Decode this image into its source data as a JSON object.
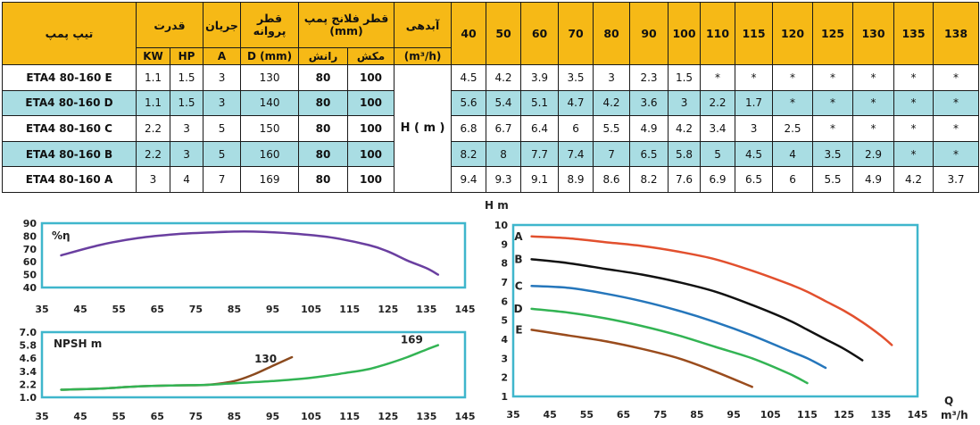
{
  "table": {
    "headers": {
      "model": "تیپ پمپ",
      "power": "قدرت",
      "current": "جریان",
      "impeller": "قطر پروانه",
      "flange": "قطر فلانج پمپ (mm)",
      "flow": "آبدهی",
      "kw": "KW",
      "hp": "HP",
      "amp": "A",
      "dmm": "D (mm)",
      "discharge": "رانش",
      "suction": "مکش",
      "flow_unit": "(m³/h)"
    },
    "flows": [
      "40",
      "50",
      "60",
      "70",
      "80",
      "90",
      "100",
      "110",
      "115",
      "120",
      "125",
      "130",
      "135",
      "138"
    ],
    "head_label": "H ( m )",
    "rows": [
      {
        "model": "ETA4 80-160 E",
        "kw": "1.1",
        "hp": "1.5",
        "a": "3",
        "d": "130",
        "discharge": "80",
        "suction": "100",
        "heads": [
          "4.5",
          "4.2",
          "3.9",
          "3.5",
          "3",
          "2.3",
          "1.5",
          "*",
          "*",
          "*",
          "*",
          "*",
          "*",
          "*"
        ]
      },
      {
        "model": "ETA4 80-160 D",
        "kw": "1.1",
        "hp": "1.5",
        "a": "3",
        "d": "140",
        "discharge": "80",
        "suction": "100",
        "heads": [
          "5.6",
          "5.4",
          "5.1",
          "4.7",
          "4.2",
          "3.6",
          "3",
          "2.2",
          "1.7",
          "*",
          "*",
          "*",
          "*",
          "*"
        ]
      },
      {
        "model": "ETA4 80-160 C",
        "kw": "2.2",
        "hp": "3",
        "a": "5",
        "d": "150",
        "discharge": "80",
        "suction": "100",
        "heads": [
          "6.8",
          "6.7",
          "6.4",
          "6",
          "5.5",
          "4.9",
          "4.2",
          "3.4",
          "3",
          "2.5",
          "*",
          "*",
          "*",
          "*"
        ]
      },
      {
        "model": "ETA4 80-160 B",
        "kw": "2.2",
        "hp": "3",
        "a": "5",
        "d": "160",
        "discharge": "80",
        "suction": "100",
        "heads": [
          "8.2",
          "8",
          "7.7",
          "7.4",
          "7",
          "6.5",
          "5.8",
          "5",
          "4.5",
          "4",
          "3.5",
          "2.9",
          "*",
          "*"
        ]
      },
      {
        "model": "ETA4 80-160 A",
        "kw": "3",
        "hp": "4",
        "a": "7",
        "d": "169",
        "discharge": "80",
        "suction": "100",
        "heads": [
          "9.4",
          "9.3",
          "9.1",
          "8.9",
          "8.6",
          "8.2",
          "7.6",
          "6.9",
          "6.5",
          "6",
          "5.5",
          "4.9",
          "4.2",
          "3.7"
        ]
      }
    ]
  },
  "chart_data": [
    {
      "type": "line",
      "ylabel": "%η",
      "xlim": [
        35,
        145
      ],
      "ylim": [
        40,
        90
      ],
      "x_ticks": [
        "35",
        "45",
        "55",
        "65",
        "75",
        "85",
        "95",
        "105",
        "115",
        "125",
        "135",
        "145"
      ],
      "y_ticks": [
        "90",
        "80",
        "70",
        "60",
        "50",
        "40"
      ],
      "series": [
        {
          "color": "#6a3fa0",
          "x": [
            40,
            50,
            60,
            70,
            80,
            85,
            90,
            100,
            110,
            120,
            125,
            130,
            135,
            138
          ],
          "y": [
            65,
            73,
            78.5,
            81.5,
            83,
            83.5,
            83.5,
            82,
            79,
            73,
            68,
            61,
            55,
            50
          ]
        }
      ]
    },
    {
      "type": "line",
      "ylabel": "NPSH m",
      "xlim": [
        35,
        145
      ],
      "ylim": [
        1.0,
        7.0
      ],
      "x_ticks": [
        "35",
        "45",
        "55",
        "65",
        "75",
        "85",
        "95",
        "105",
        "115",
        "125",
        "135",
        "145"
      ],
      "y_ticks": [
        "7.0",
        "5.8",
        "4.6",
        "3.4",
        "2.2",
        "1.0"
      ],
      "series": [
        {
          "name": "130",
          "color": "#8b4a1e",
          "x": [
            40,
            50,
            60,
            70,
            78,
            85,
            90,
            95,
            100
          ],
          "y": [
            1.7,
            1.8,
            2.0,
            2.1,
            2.15,
            2.5,
            3.1,
            3.9,
            4.7
          ]
        },
        {
          "name": "169",
          "color": "#33b454",
          "x": [
            40,
            50,
            60,
            70,
            78,
            85,
            95,
            105,
            115,
            120,
            125,
            130,
            135,
            138
          ],
          "y": [
            1.7,
            1.8,
            2.0,
            2.1,
            2.15,
            2.3,
            2.5,
            2.8,
            3.3,
            3.6,
            4.1,
            4.7,
            5.4,
            5.8
          ]
        }
      ]
    },
    {
      "type": "line",
      "ylabel": "H m",
      "xlabel": "Q",
      "xunit": "m³/h",
      "xlim": [
        35,
        145
      ],
      "ylim": [
        1,
        10
      ],
      "x_ticks": [
        "35",
        "45",
        "55",
        "65",
        "75",
        "85",
        "95",
        "105",
        "115",
        "125",
        "135",
        "145"
      ],
      "y_ticks": [
        "10",
        "9",
        "8",
        "7",
        "6",
        "5",
        "4",
        "3",
        "2",
        "1"
      ],
      "series": [
        {
          "name": "A",
          "color": "#e2502e",
          "x": [
            40,
            50,
            60,
            70,
            80,
            90,
            100,
            110,
            115,
            120,
            125,
            130,
            135,
            138
          ],
          "y": [
            9.4,
            9.3,
            9.1,
            8.9,
            8.6,
            8.2,
            7.6,
            6.9,
            6.5,
            6.0,
            5.5,
            4.9,
            4.2,
            3.7
          ]
        },
        {
          "name": "B",
          "color": "#111111",
          "x": [
            40,
            50,
            60,
            70,
            80,
            90,
            100,
            110,
            115,
            120,
            125,
            130
          ],
          "y": [
            8.2,
            8.0,
            7.7,
            7.4,
            7.0,
            6.5,
            5.8,
            5.0,
            4.5,
            4.0,
            3.5,
            2.9
          ]
        },
        {
          "name": "C",
          "color": "#2576bb",
          "x": [
            40,
            50,
            60,
            70,
            80,
            90,
            100,
            110,
            115,
            120
          ],
          "y": [
            6.8,
            6.7,
            6.4,
            6.0,
            5.5,
            4.9,
            4.2,
            3.4,
            3.0,
            2.5
          ]
        },
        {
          "name": "D",
          "color": "#33b454",
          "x": [
            40,
            50,
            60,
            70,
            80,
            90,
            100,
            110,
            115
          ],
          "y": [
            5.6,
            5.4,
            5.1,
            4.7,
            4.2,
            3.6,
            3.0,
            2.2,
            1.7
          ]
        },
        {
          "name": "E",
          "color": "#9a4c1d",
          "x": [
            40,
            50,
            60,
            70,
            80,
            90,
            100
          ],
          "y": [
            4.5,
            4.2,
            3.9,
            3.5,
            3.0,
            2.3,
            1.5
          ]
        }
      ]
    }
  ]
}
